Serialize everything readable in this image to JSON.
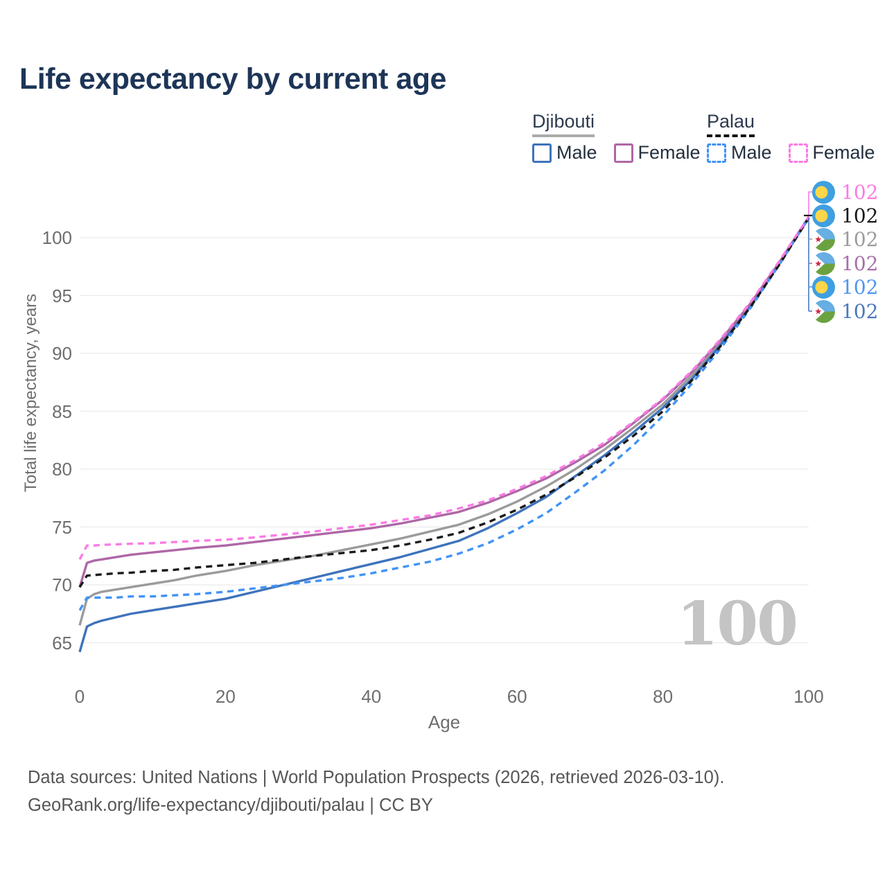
{
  "title": "Life expectancy by current age",
  "legend": {
    "groups": [
      {
        "country": "Djibouti",
        "line_style": "solid",
        "underline_color": "#ABABAB",
        "items": [
          {
            "label": "Male",
            "color": "#3E73BC"
          },
          {
            "label": "Female",
            "color": "#AE67A6"
          }
        ]
      },
      {
        "country": "Palau",
        "line_style": "dashed",
        "underline_color": "#141414",
        "items": [
          {
            "label": "Male",
            "color": "#4193F6"
          },
          {
            "label": "Female",
            "color": "#FB7BE4"
          }
        ]
      }
    ]
  },
  "chart_data": {
    "type": "line",
    "title": "Life expectancy by current age",
    "xlabel": "Age",
    "ylabel": "Total life expectancy, years",
    "xticks": [
      0,
      20,
      40,
      60,
      80,
      100
    ],
    "yticks": [
      100,
      95,
      90,
      85,
      80,
      75,
      70,
      65
    ],
    "xlim": [
      0,
      100
    ],
    "ylim": [
      63,
      103
    ],
    "grid": "horizontal",
    "gridline_color": "#EBEBEB",
    "x": [
      0,
      1,
      2,
      3,
      5,
      7,
      10,
      13,
      16,
      20,
      24,
      28,
      32,
      36,
      40,
      44,
      48,
      52,
      56,
      60,
      64,
      68,
      72,
      76,
      80,
      84,
      88,
      92,
      96,
      100
    ],
    "series": [
      {
        "id": "djibouti-both",
        "name": "Djibouti",
        "sex": "Both",
        "color": "#9B9B9B",
        "dash": false,
        "values": [
          66.5,
          68.8,
          69.2,
          69.4,
          69.6,
          69.8,
          70.1,
          70.4,
          70.8,
          71.2,
          71.7,
          72.1,
          72.5,
          73.0,
          73.5,
          74.0,
          74.6,
          75.2,
          76.1,
          77.2,
          78.5,
          80.0,
          81.7,
          83.6,
          85.6,
          88.1,
          90.9,
          94.2,
          97.8,
          101.75
        ]
      },
      {
        "id": "djibouti-male",
        "name": "Djibouti Male",
        "sex": "Male",
        "color": "#3E73BC",
        "dash": false,
        "values": [
          64.2,
          66.4,
          66.7,
          66.9,
          67.2,
          67.5,
          67.8,
          68.1,
          68.4,
          68.8,
          69.4,
          70.0,
          70.6,
          71.2,
          71.8,
          72.4,
          73.1,
          73.8,
          74.9,
          76.2,
          77.6,
          79.4,
          81.2,
          83.2,
          85.3,
          87.8,
          90.8,
          94.1,
          97.8,
          101.7
        ]
      },
      {
        "id": "djibouti-female",
        "name": "Djibouti Female",
        "sex": "Female",
        "color": "#AE67A6",
        "dash": false,
        "values": [
          69.8,
          71.9,
          72.1,
          72.2,
          72.4,
          72.6,
          72.8,
          73.0,
          73.2,
          73.4,
          73.7,
          74.0,
          74.3,
          74.6,
          74.9,
          75.3,
          75.8,
          76.3,
          77.1,
          78.1,
          79.2,
          80.6,
          82.1,
          84.0,
          86.0,
          88.4,
          91.2,
          94.3,
          97.9,
          101.8
        ]
      },
      {
        "id": "palau-male",
        "name": "Palau Male",
        "sex": "Male",
        "color": "#4193F6",
        "dash": true,
        "values": [
          67.8,
          68.9,
          68.9,
          68.9,
          68.9,
          69.0,
          69.0,
          69.1,
          69.2,
          69.4,
          69.7,
          70.0,
          70.3,
          70.6,
          71.0,
          71.5,
          72.0,
          72.7,
          73.6,
          74.8,
          76.2,
          78.0,
          79.9,
          82.1,
          84.6,
          87.4,
          90.5,
          93.9,
          97.7,
          101.7
        ]
      },
      {
        "id": "palau-both",
        "name": "Palau",
        "sex": "Both",
        "color": "#1A1A1A",
        "dash": true,
        "values": [
          69.8,
          70.8,
          70.85,
          70.9,
          71.0,
          71.05,
          71.2,
          71.3,
          71.5,
          71.7,
          71.9,
          72.2,
          72.5,
          72.75,
          73.0,
          73.4,
          73.9,
          74.5,
          75.4,
          76.5,
          77.8,
          79.3,
          81.0,
          82.9,
          85.0,
          87.7,
          90.7,
          94.0,
          97.7,
          101.7
        ]
      },
      {
        "id": "palau-female",
        "name": "Palau Female",
        "sex": "Female",
        "color": "#FB7BE4",
        "dash": true,
        "values": [
          72.2,
          73.4,
          73.4,
          73.45,
          73.5,
          73.55,
          73.6,
          73.7,
          73.8,
          73.9,
          74.1,
          74.35,
          74.6,
          74.9,
          75.2,
          75.6,
          76.0,
          76.6,
          77.3,
          78.3,
          79.4,
          80.8,
          82.3,
          84.1,
          86.1,
          88.5,
          91.3,
          94.4,
          98.0,
          101.8
        ]
      }
    ],
    "end_value": 101.72,
    "end_labels": [
      {
        "text": "102",
        "series": "Palau Female",
        "flag": "palau",
        "color": "#FB7BE4"
      },
      {
        "text": "102",
        "series": "Palau",
        "flag": "palau",
        "color": "#161616"
      },
      {
        "text": "102",
        "series": "Djibouti",
        "flag": "djibouti",
        "color": "#9B9B9B"
      },
      {
        "text": "102",
        "series": "Djibouti Female",
        "flag": "djibouti",
        "color": "#A76FA8"
      },
      {
        "text": "102",
        "series": "Palau Male",
        "flag": "palau",
        "color": "#4E95F2"
      },
      {
        "text": "102",
        "series": "Djibouti Male",
        "flag": "djibouti",
        "color": "#4A78BE"
      }
    ],
    "watermark": "100",
    "legend_position": "top-right"
  },
  "footer": {
    "line1": "Data sources: United Nations | World Population Prospects (2026, retrieved 2026-03-10).",
    "line2": "GeoRank.org/life-expectancy/djibouti/palau | CC BY"
  }
}
